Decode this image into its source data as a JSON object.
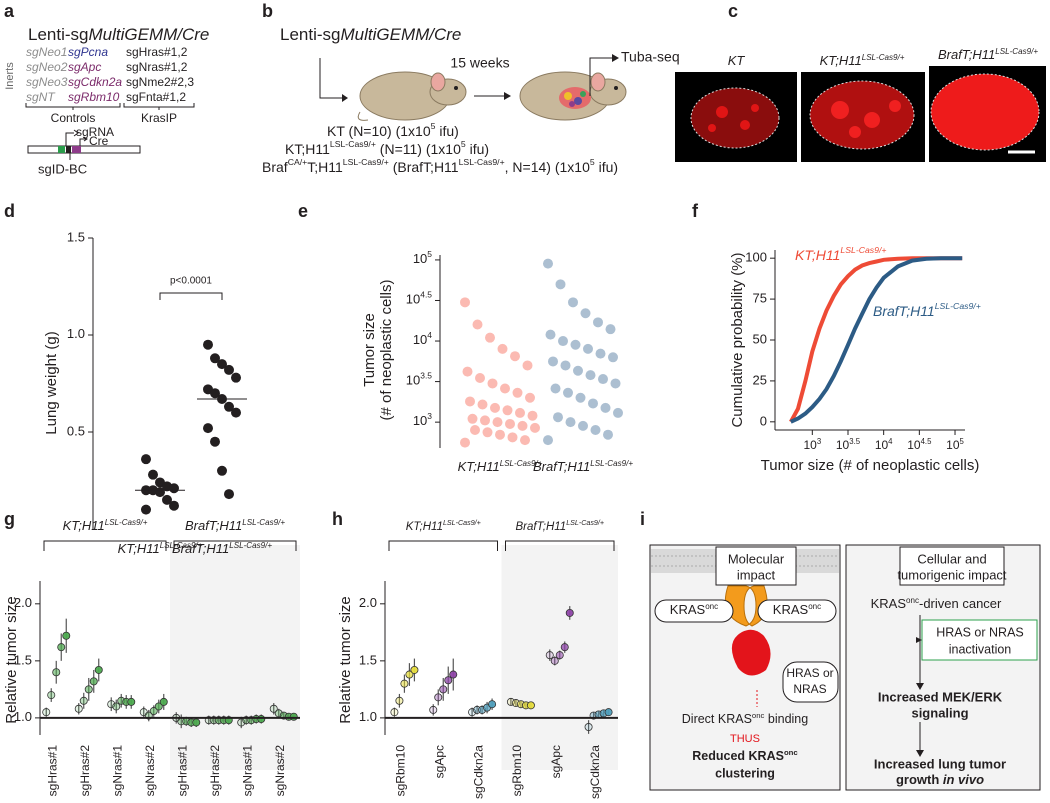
{
  "a": {
    "label": "a",
    "title": [
      "Lenti-sg",
      "MultiGEMM/Cre"
    ],
    "side_label": "Inerts",
    "guides": [
      [
        "sgNeo1",
        "sgNeo2",
        "sgNeo3",
        "sgNT"
      ],
      [
        "sgPcna",
        "sgApc",
        "sgCdkn2a",
        "sgRbm10"
      ],
      [
        "sgHras#1,2",
        "sgNras#1,2",
        "sgNme2#2,3",
        "sgFnta#1,2"
      ]
    ],
    "groups": [
      "Controls",
      "KrasIP"
    ],
    "construct": [
      "sgRNA",
      "Cre",
      "sgID-BC"
    ]
  },
  "b": {
    "label": "b",
    "title": [
      "Lenti-sg",
      "MultiGEMM/Cre"
    ],
    "duration": "15 weeks",
    "readout": "Tuba-seq",
    "cohorts": [
      [
        {
          "text": "KT"
        },
        {
          "text": " (N=10) "
        },
        {
          "text": "(1x10",
          "sup": "5"
        },
        {
          "text": " ifu)"
        }
      ],
      [
        {
          "text": "KT;H11",
          "sup": "LSL-Cas9/+"
        },
        {
          "text": " (N=11) "
        },
        {
          "text": "(1x10",
          "sup": "5"
        },
        {
          "text": " ifu)"
        }
      ],
      [
        {
          "text": "Braf",
          "sup": "CA/+"
        },
        {
          "text": "T;H11",
          "sup": "LSL-Cas9/+"
        },
        {
          "text": " ("
        },
        {
          "text": "BrafT;H11",
          "sup": "LSL-Cas9/+"
        },
        {
          "text": ", N=14) "
        },
        {
          "text": "(1x10",
          "sup": "5"
        },
        {
          "text": " ifu)"
        }
      ]
    ]
  },
  "c": {
    "label": "c",
    "images": [
      {
        "text": "KT"
      },
      {
        "text": "KT;H11",
        "sup": "LSL-Cas9/+"
      },
      {
        "text": "BrafT;H11",
        "sup": "LSL-Cas9/+"
      }
    ]
  },
  "chart_data": [
    {
      "label": "d",
      "type": "strip",
      "ylabel": "Lung weight (g)",
      "categories": [
        {
          "text": "KT;H11",
          "sup": "LSL-Cas9/+"
        },
        {
          "text": "BrafT;H11",
          "sup": "LSL-Cas9/+"
        }
      ],
      "values": [
        [
          0.36,
          0.28,
          0.24,
          0.22,
          0.21,
          0.2,
          0.2,
          0.19,
          0.15,
          0.12,
          0.1
        ],
        [
          0.95,
          0.88,
          0.85,
          0.82,
          0.78,
          0.72,
          0.7,
          0.67,
          0.63,
          0.6,
          0.52,
          0.45,
          0.3,
          0.18
        ]
      ],
      "medians": [
        0.2,
        0.67
      ],
      "color": "#231f20",
      "annotation": "p<0.0001",
      "ylim": [
        0,
        1.5
      ],
      "yticks": [
        0.5,
        {
          "value": 1,
          "label": "1.0"
        },
        1.5
      ]
    },
    {
      "label": "e",
      "type": "strip",
      "log": true,
      "ylabel": [
        "Tumor size",
        "(# of neoplastic cells)"
      ],
      "categories": [
        {
          "text": "KT;H11",
          "sup": "LSL-Cas9/+"
        },
        {
          "text": "BrafT;H11",
          "sup": "LSL-Cas9/+"
        }
      ],
      "colors": [
        "#f4533f",
        "#2f5f8c"
      ],
      "values": [
        [
          560,
          600,
          650,
          700,
          750,
          800,
          850,
          900,
          950,
          1000,
          1050,
          1100,
          1200,
          1300,
          1400,
          1500,
          1650,
          1800,
          2000,
          2300,
          2600,
          3000,
          3500,
          4200,
          5000,
          6500,
          8000,
          11000,
          16000,
          30000
        ],
        [
          600,
          700,
          800,
          900,
          1000,
          1150,
          1300,
          1500,
          1700,
          2000,
          2300,
          2600,
          3000,
          3400,
          3800,
          4300,
          5000,
          5600,
          6300,
          7000,
          8000,
          9000,
          10000,
          12000,
          14000,
          17000,
          22000,
          30000,
          50000,
          90000
        ]
      ],
      "ylim": [
        480,
        115000
      ],
      "yticks": [
        {
          "value": 1000,
          "label": "10",
          "exponent": "3"
        },
        {
          "value": 3162.28,
          "label": "10",
          "exponent": "3.5"
        },
        {
          "value": 10000,
          "label": "10",
          "exponent": "4"
        },
        {
          "value": 31622.78,
          "label": "10",
          "exponent": "4.5"
        },
        {
          "value": 100000,
          "label": "10",
          "exponent": "5"
        }
      ]
    },
    {
      "label": "f",
      "type": "line",
      "xlog": true,
      "xlabel": "Tumor size (# of neoplastic cells)",
      "ylabel": "Cumulative probability (%)",
      "x": [
        500,
        630,
        800,
        1000,
        1260,
        1580,
        2000,
        2510,
        3160,
        3980,
        5010,
        6310,
        7940,
        10000,
        15850,
        25120,
        39810,
        63100,
        100000,
        125900
      ],
      "series": [
        {
          "name": {
            "text": "KT;H11",
            "sup": "LSL-Cas9/+"
          },
          "color": "#ee4b36",
          "values": [
            0,
            8,
            25,
            43,
            57,
            68,
            77,
            84,
            89,
            93,
            95.5,
            97,
            98,
            99,
            99.7,
            100,
            100,
            100,
            100,
            100
          ]
        },
        {
          "name": {
            "text": "BrafT;H11",
            "sup": "LSL-Cas9/+"
          },
          "color": "#2c5b85",
          "values": [
            0,
            2,
            5,
            9,
            14,
            20,
            28,
            37,
            47,
            57,
            66,
            75,
            82,
            88,
            95,
            98.5,
            99.6,
            100,
            100,
            100
          ]
        }
      ],
      "xlim": [
        300,
        138000
      ],
      "ylim": [
        -5,
        105
      ],
      "yticks": [
        0,
        25,
        50,
        75,
        100
      ],
      "xticks": [
        {
          "value": 1000,
          "label": "10",
          "exponent": "3"
        },
        {
          "value": 3162.28,
          "label": "10",
          "exponent": "3.5"
        },
        {
          "value": 10000,
          "label": "10",
          "exponent": "4"
        },
        {
          "value": 31622.78,
          "label": "10",
          "exponent": "4.5"
        },
        {
          "value": 100000,
          "label": "10",
          "exponent": "5"
        }
      ]
    },
    {
      "label": "g",
      "type": "dot-error",
      "ylabel": "Relative tumor size",
      "color": "#4daa4f",
      "hline": 1,
      "ylim": [
        0.85,
        2.2
      ],
      "yticks": [
        {
          "value": 1,
          "label": "1.0"
        },
        1.5,
        {
          "value": 2,
          "label": "2.0"
        }
      ],
      "groups": [
        {
          "name": {
            "text": "KT;H11",
            "sup": "LSL-Cas9/+"
          },
          "categories": [
            "sgHras#1",
            "sgHras#2",
            "sgNras#1",
            "sgNras#2"
          ],
          "values": [
            [
              1.05,
              1.2,
              1.4,
              1.62,
              1.72
            ],
            [
              1.08,
              1.15,
              1.25,
              1.32,
              1.42
            ],
            [
              1.12,
              1.1,
              1.15,
              1.14,
              1.14
            ],
            [
              1.05,
              1.02,
              1.06,
              1.1,
              1.14
            ]
          ],
          "errors": [
            [
              0.04,
              0.06,
              0.1,
              0.12,
              0.15
            ],
            [
              0.05,
              0.07,
              0.1,
              0.1,
              0.1
            ],
            [
              0.06,
              0.06,
              0.06,
              0.06,
              0.06
            ],
            [
              0.05,
              0.05,
              0.05,
              0.06,
              0.07
            ]
          ]
        },
        {
          "name": {
            "text": "BrafT;H11",
            "sup": "LSL-Cas9/+"
          },
          "categories": [
            "sgHras#1",
            "sgHras#2",
            "sgNras#1",
            "sgNras#2"
          ],
          "values": [
            [
              1,
              0.97,
              0.97,
              0.96,
              0.96
            ],
            [
              0.98,
              0.98,
              0.98,
              0.98,
              0.98
            ],
            [
              0.96,
              0.98,
              0.98,
              0.99,
              0.99
            ],
            [
              1.08,
              1.04,
              1.02,
              1.01,
              1.01
            ]
          ],
          "errors": [
            [
              0.05,
              0.06,
              0.04,
              0.04,
              0.04
            ],
            [
              0.04,
              0.04,
              0.04,
              0.04,
              0.04
            ],
            [
              0.05,
              0.04,
              0.04,
              0.04,
              0.04
            ],
            [
              0.05,
              0.04,
              0.03,
              0.03,
              0.03
            ]
          ]
        }
      ]
    },
    {
      "label": "h",
      "type": "dot-error",
      "ylabel": "Relative tumor size",
      "category_colors": [
        "#e6dc3c",
        "#8e44a8",
        "#4f9fbd"
      ],
      "hline": 1,
      "ylim": [
        0.85,
        2.2
      ],
      "yticks": [
        {
          "value": 1,
          "label": "1.0"
        },
        1.5,
        {
          "value": 2,
          "label": "2.0"
        }
      ],
      "groups": [
        {
          "name": {
            "text": "KT;H11",
            "sup": "LSL-Cas9/+"
          },
          "categories": [
            "sgRbm10",
            "sgApc",
            "sgCdkn2a"
          ],
          "values": [
            [
              1.05,
              1.15,
              1.3,
              1.38,
              1.42
            ],
            [
              1.07,
              1.18,
              1.25,
              1.33,
              1.38
            ],
            [
              1.05,
              1.07,
              1.07,
              1.09,
              1.12
            ]
          ],
          "errors": [
            [
              0.04,
              0.06,
              0.08,
              0.1,
              0.1
            ],
            [
              0.05,
              0.07,
              0.1,
              0.12,
              0.14
            ],
            [
              0.04,
              0.04,
              0.04,
              0.05,
              0.05
            ]
          ]
        },
        {
          "name": {
            "text": "BrafT;H11",
            "sup": "LSL-Cas9/+"
          },
          "categories": [
            "sgRbm10",
            "sgApc",
            "sgCdkn2a"
          ],
          "values": [
            [
              1.14,
              1.13,
              1.12,
              1.11,
              1.11
            ],
            [
              1.55,
              1.5,
              1.55,
              1.62,
              1.92
            ],
            [
              0.92,
              1.02,
              1.03,
              1.04,
              1.05
            ]
          ],
          "errors": [
            [
              0.03,
              0.03,
              0.03,
              0.03,
              0.03
            ],
            [
              0.05,
              0.04,
              0.04,
              0.05,
              0.06
            ],
            [
              0.06,
              0.03,
              0.03,
              0.03,
              0.03
            ]
          ]
        }
      ]
    }
  ],
  "i": {
    "label": "i",
    "molecular": {
      "header": [
        "Molecular",
        "impact"
      ],
      "kras": [
        {
          "text": "KRAS",
          "sup": "onc"
        },
        {
          "text": "KRAS",
          "sup": "onc"
        }
      ],
      "partner": [
        "HRAS or",
        "NRAS"
      ],
      "binding": [
        {
          "text": "Direct KRAS",
          "sup": "onc"
        },
        {
          "text": " binding"
        }
      ],
      "connector": "THUS",
      "result": [
        {
          "text": "Reduced KRAS",
          "sup": "onc"
        },
        "clustering"
      ]
    },
    "cellular": {
      "header": [
        "Cellular and",
        "tumorigenic impact"
      ],
      "cancer": [
        {
          "text": "KRAS",
          "sup": "onc"
        },
        {
          "text": "-driven cancer"
        }
      ],
      "perturbation": [
        "HRAS or NRAS",
        "inactivation"
      ],
      "steps": [
        [
          "Increased MEK/ERK",
          "signaling"
        ],
        [
          "Increased lung tumor",
          [
            "growth ",
            "in vivo"
          ]
        ]
      ]
    }
  }
}
